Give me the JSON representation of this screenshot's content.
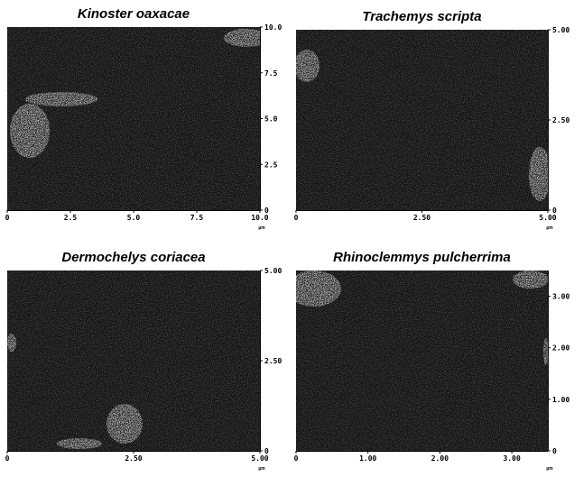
{
  "panels": [
    {
      "title": "Kinoster oaxacae",
      "unit": "µm",
      "xlim": [
        0,
        10
      ],
      "ylim": [
        0,
        10
      ],
      "xticks": [
        0,
        2.5,
        {
          "value": 5,
          "label": "5.0"
        },
        7.5,
        {
          "value": 10,
          "label": "10.0"
        }
      ],
      "yticks": [
        0,
        2.5,
        {
          "value": 5,
          "label": "5.0"
        },
        7.5,
        {
          "value": 10,
          "label": "10.0"
        }
      ]
    },
    {
      "title": "Trachemys scripta",
      "unit": "µm",
      "xlim": [
        0,
        5
      ],
      "ylim": [
        0,
        5
      ],
      "xticks": [
        0,
        {
          "value": 2.5,
          "label": "2.50"
        },
        {
          "value": 5,
          "label": "5.00"
        }
      ],
      "yticks": [
        0,
        {
          "value": 2.5,
          "label": "2.50"
        },
        {
          "value": 5,
          "label": "5.00"
        }
      ]
    },
    {
      "title": "Dermochelys coriacea",
      "unit": "µm",
      "xlim": [
        0,
        5
      ],
      "ylim": [
        0,
        5
      ],
      "xticks": [
        0,
        {
          "value": 2.5,
          "label": "2.50"
        },
        {
          "value": 5,
          "label": "5.00"
        }
      ],
      "yticks": [
        0,
        {
          "value": 2.5,
          "label": "2.50"
        },
        {
          "value": 5,
          "label": "5.00"
        }
      ]
    },
    {
      "title": "Rhinoclemmys pulcherrima",
      "unit": "µm",
      "xlim": [
        0,
        3.5
      ],
      "ylim": [
        0,
        3.5
      ],
      "xticks": [
        0,
        {
          "value": 1,
          "label": "1.00"
        },
        {
          "value": 2,
          "label": "2.00"
        },
        {
          "value": 3,
          "label": "3.00"
        }
      ],
      "yticks": [
        0,
        {
          "value": 1,
          "label": "1.00"
        },
        {
          "value": 2,
          "label": "2.00"
        },
        {
          "value": 3,
          "label": "3.00"
        }
      ]
    }
  ]
}
